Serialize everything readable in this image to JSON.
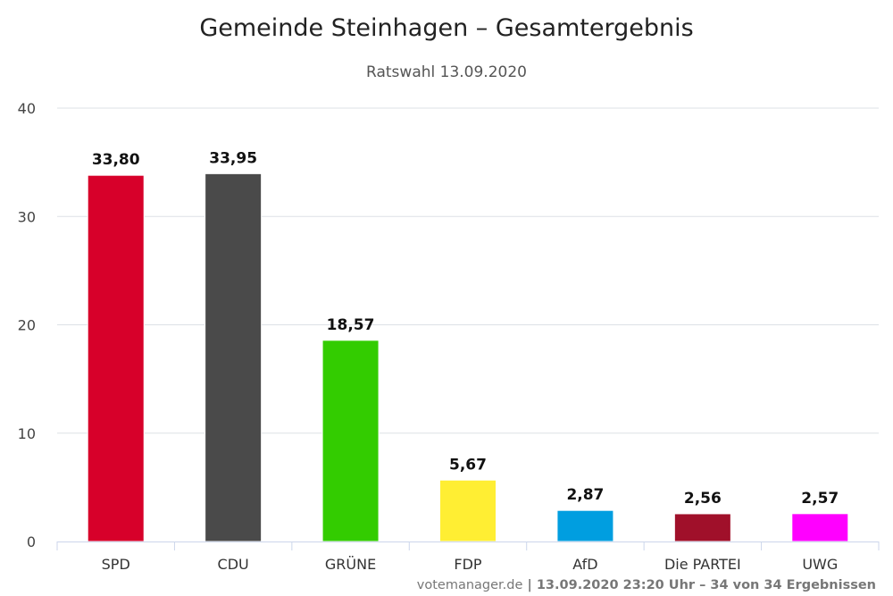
{
  "chart_data": {
    "type": "bar",
    "title": "Gemeinde Steinhagen – Gesamtergebnis",
    "subtitle": "Ratswahl 13.09.2020",
    "xlabel": "",
    "ylabel": "",
    "ylim": [
      0,
      40
    ],
    "yticks": [
      0,
      10,
      20,
      30,
      40
    ],
    "grid": true,
    "legend": "none",
    "categories": [
      "SPD",
      "CDU",
      "GRÜNE",
      "FDP",
      "AfD",
      "Die PARTEI",
      "UWG"
    ],
    "values": [
      33.8,
      33.95,
      18.57,
      5.67,
      2.87,
      2.56,
      2.57
    ],
    "value_labels": [
      "33,80",
      "33,95",
      "18,57",
      "5,67",
      "2,87",
      "2,56",
      "2,57"
    ],
    "colors": [
      "#d7002a",
      "#4a4a4a",
      "#33cc00",
      "#ffee33",
      "#009ee0",
      "#a0102a",
      "#ff00ff"
    ]
  },
  "credits": {
    "site": "votemanager.de",
    "separator": " | ",
    "info": "13.09.2020 23:20 Uhr – 34 von 34 Ergebnissen"
  }
}
